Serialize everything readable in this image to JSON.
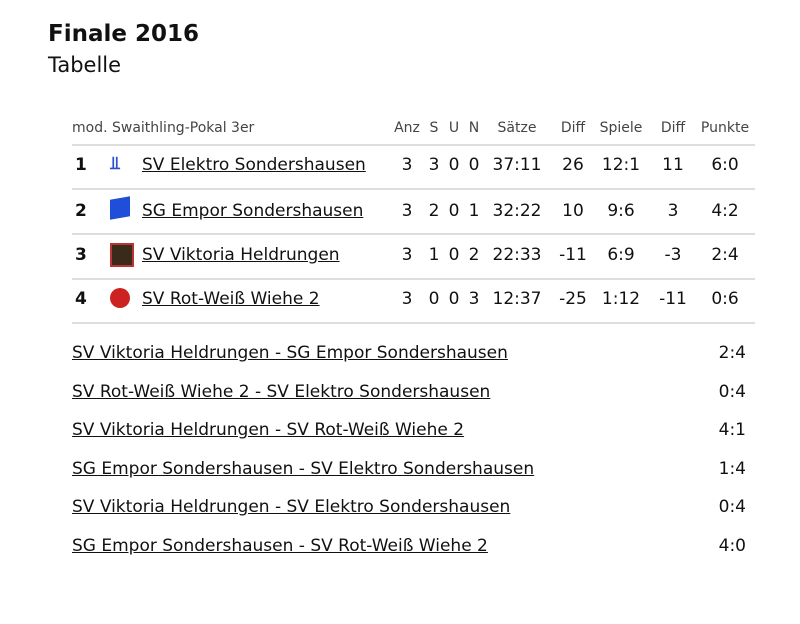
{
  "header": {
    "title": "Finale 2016",
    "subtitle": "Tabelle"
  },
  "table": {
    "caption": "mod. Swaithling-Pokal 3er",
    "columns": [
      "Anz",
      "S",
      "U",
      "N",
      "Sätze",
      "Diff",
      "Spiele",
      "Diff",
      "Punkte"
    ],
    "rows": [
      [
        "1",
        "SV Elektro Sondershausen",
        "3",
        "3",
        "0",
        "0",
        "37:11",
        "26",
        "12:1",
        "11",
        "6:0"
      ],
      [
        "2",
        "SG Empor Sondershausen",
        "3",
        "2",
        "0",
        "1",
        "32:22",
        "10",
        "9:6",
        "3",
        "4:2"
      ],
      [
        "3",
        "SV Viktoria Heldrungen",
        "3",
        "1",
        "0",
        "2",
        "22:33",
        "-11",
        "6:9",
        "-3",
        "2:4"
      ],
      [
        "4",
        "SV Rot-Weiß Wiehe 2",
        "3",
        "0",
        "0",
        "3",
        "12:37",
        "-25",
        "1:12",
        "-11",
        "0:6"
      ]
    ]
  },
  "matches": [
    {
      "pairing": "SV Viktoria Heldrungen - SG Empor Sondershausen",
      "result": "2:4"
    },
    {
      "pairing": "SV Rot-Weiß Wiehe 2 - SV Elektro Sondershausen",
      "result": "0:4"
    },
    {
      "pairing": "SV Viktoria Heldrungen - SV Rot-Weiß Wiehe 2",
      "result": "4:1"
    },
    {
      "pairing": "SG Empor Sondershausen - SV Elektro Sondershausen",
      "result": "1:4"
    },
    {
      "pairing": "SV Viktoria Heldrungen - SV Elektro Sondershausen",
      "result": "0:4"
    },
    {
      "pairing": "SG Empor Sondershausen - SV Rot-Weiß Wiehe 2",
      "result": "4:0"
    }
  ]
}
